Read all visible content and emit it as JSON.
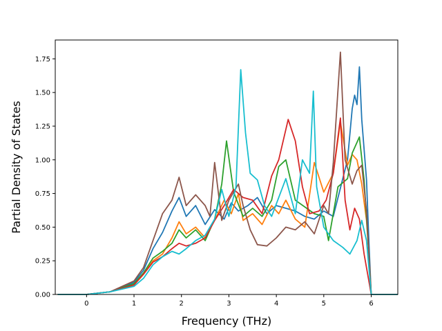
{
  "chart_data": {
    "type": "line",
    "title": "",
    "xlabel": "Frequency (THz)",
    "ylabel": "Partial Density of States",
    "xlim": [
      -0.66,
      6.56
    ],
    "ylim": [
      0,
      1.89
    ],
    "xticks": [
      0,
      1,
      2,
      3,
      4,
      5,
      6
    ],
    "xtick_labels": [
      "0",
      "1",
      "2",
      "3",
      "4",
      "5",
      "6"
    ],
    "yticks": [
      0,
      0.25,
      0.5,
      0.75,
      1.0,
      1.25,
      1.5,
      1.75
    ],
    "ytick_labels": [
      "0.00",
      "0.25",
      "0.50",
      "0.75",
      "1.00",
      "1.25",
      "1.50",
      "1.75"
    ],
    "grid": false,
    "legend": "none",
    "series": [
      {
        "color": "#1f77b4",
        "points": [
          [
            -0.6,
            0
          ],
          [
            0,
            0
          ],
          [
            0.5,
            0.02
          ],
          [
            1.0,
            0.09
          ],
          [
            1.2,
            0.18
          ],
          [
            1.4,
            0.34
          ],
          [
            1.6,
            0.46
          ],
          [
            1.8,
            0.62
          ],
          [
            1.95,
            0.72
          ],
          [
            2.1,
            0.58
          ],
          [
            2.3,
            0.66
          ],
          [
            2.5,
            0.52
          ],
          [
            2.7,
            0.63
          ],
          [
            2.9,
            0.56
          ],
          [
            3.05,
            0.68
          ],
          [
            3.2,
            0.62
          ],
          [
            3.4,
            0.66
          ],
          [
            3.6,
            0.72
          ],
          [
            3.8,
            0.6
          ],
          [
            4.0,
            0.66
          ],
          [
            4.2,
            0.64
          ],
          [
            4.4,
            0.62
          ],
          [
            4.6,
            0.58
          ],
          [
            4.8,
            0.56
          ],
          [
            5.0,
            0.62
          ],
          [
            5.2,
            0.58
          ],
          [
            5.4,
            0.86
          ],
          [
            5.5,
            1.0
          ],
          [
            5.6,
            1.38
          ],
          [
            5.65,
            1.48
          ],
          [
            5.7,
            1.41
          ],
          [
            5.75,
            1.69
          ],
          [
            5.8,
            1.3
          ],
          [
            5.9,
            0.85
          ],
          [
            5.95,
            0.4
          ],
          [
            6.0,
            0
          ],
          [
            6.55,
            0
          ]
        ]
      },
      {
        "color": "#ff7f0e",
        "points": [
          [
            -0.6,
            0
          ],
          [
            0,
            0
          ],
          [
            0.5,
            0.02
          ],
          [
            1.0,
            0.07
          ],
          [
            1.2,
            0.15
          ],
          [
            1.4,
            0.25
          ],
          [
            1.6,
            0.3
          ],
          [
            1.8,
            0.42
          ],
          [
            1.95,
            0.54
          ],
          [
            2.1,
            0.45
          ],
          [
            2.3,
            0.5
          ],
          [
            2.5,
            0.42
          ],
          [
            2.7,
            0.55
          ],
          [
            2.9,
            0.7
          ],
          [
            3.05,
            0.6
          ],
          [
            3.2,
            0.75
          ],
          [
            3.3,
            0.55
          ],
          [
            3.5,
            0.6
          ],
          [
            3.7,
            0.52
          ],
          [
            3.9,
            0.66
          ],
          [
            4.05,
            0.6
          ],
          [
            4.2,
            0.7
          ],
          [
            4.4,
            0.56
          ],
          [
            4.6,
            0.5
          ],
          [
            4.8,
            0.98
          ],
          [
            5.0,
            0.76
          ],
          [
            5.2,
            0.9
          ],
          [
            5.35,
            1.28
          ],
          [
            5.5,
            0.96
          ],
          [
            5.6,
            1.04
          ],
          [
            5.7,
            1.0
          ],
          [
            5.8,
            0.82
          ],
          [
            5.9,
            0.55
          ],
          [
            5.95,
            0.3
          ],
          [
            6.0,
            0
          ],
          [
            6.55,
            0
          ]
        ]
      },
      {
        "color": "#2ca02c",
        "points": [
          [
            -0.6,
            0
          ],
          [
            0,
            0
          ],
          [
            0.5,
            0.02
          ],
          [
            1.0,
            0.08
          ],
          [
            1.2,
            0.16
          ],
          [
            1.4,
            0.27
          ],
          [
            1.6,
            0.32
          ],
          [
            1.8,
            0.38
          ],
          [
            1.95,
            0.48
          ],
          [
            2.1,
            0.42
          ],
          [
            2.3,
            0.48
          ],
          [
            2.5,
            0.4
          ],
          [
            2.7,
            0.56
          ],
          [
            2.85,
            0.82
          ],
          [
            2.95,
            1.14
          ],
          [
            3.1,
            0.76
          ],
          [
            3.3,
            0.58
          ],
          [
            3.5,
            0.64
          ],
          [
            3.7,
            0.58
          ],
          [
            3.9,
            0.7
          ],
          [
            4.05,
            0.95
          ],
          [
            4.2,
            1.0
          ],
          [
            4.4,
            0.7
          ],
          [
            4.6,
            0.65
          ],
          [
            4.8,
            0.6
          ],
          [
            5.0,
            0.58
          ],
          [
            5.1,
            0.4
          ],
          [
            5.3,
            0.8
          ],
          [
            5.5,
            0.86
          ],
          [
            5.6,
            1.05
          ],
          [
            5.75,
            1.17
          ],
          [
            5.85,
            0.85
          ],
          [
            5.95,
            0.3
          ],
          [
            6.0,
            0
          ],
          [
            6.55,
            0
          ]
        ]
      },
      {
        "color": "#d62728",
        "points": [
          [
            -0.6,
            0
          ],
          [
            0,
            0
          ],
          [
            0.5,
            0.02
          ],
          [
            1.0,
            0.07
          ],
          [
            1.2,
            0.15
          ],
          [
            1.4,
            0.24
          ],
          [
            1.6,
            0.28
          ],
          [
            1.8,
            0.34
          ],
          [
            1.95,
            0.38
          ],
          [
            2.1,
            0.36
          ],
          [
            2.3,
            0.38
          ],
          [
            2.5,
            0.42
          ],
          [
            2.7,
            0.55
          ],
          [
            2.9,
            0.66
          ],
          [
            3.1,
            0.78
          ],
          [
            3.3,
            0.72
          ],
          [
            3.5,
            0.7
          ],
          [
            3.7,
            0.6
          ],
          [
            3.9,
            0.88
          ],
          [
            4.05,
            1.0
          ],
          [
            4.25,
            1.3
          ],
          [
            4.4,
            1.14
          ],
          [
            4.55,
            0.8
          ],
          [
            4.7,
            0.6
          ],
          [
            4.9,
            0.62
          ],
          [
            5.05,
            0.7
          ],
          [
            5.2,
            0.9
          ],
          [
            5.35,
            1.31
          ],
          [
            5.45,
            0.7
          ],
          [
            5.55,
            0.48
          ],
          [
            5.65,
            0.64
          ],
          [
            5.75,
            0.56
          ],
          [
            5.85,
            0.3
          ],
          [
            5.95,
            0.1
          ],
          [
            6.0,
            0
          ],
          [
            6.55,
            0
          ]
        ]
      },
      {
        "color": "#8c564b",
        "points": [
          [
            -0.6,
            0
          ],
          [
            0,
            0
          ],
          [
            0.5,
            0.02
          ],
          [
            1.0,
            0.1
          ],
          [
            1.2,
            0.2
          ],
          [
            1.4,
            0.4
          ],
          [
            1.6,
            0.6
          ],
          [
            1.8,
            0.7
          ],
          [
            1.95,
            0.87
          ],
          [
            2.1,
            0.66
          ],
          [
            2.3,
            0.74
          ],
          [
            2.5,
            0.66
          ],
          [
            2.6,
            0.58
          ],
          [
            2.7,
            0.98
          ],
          [
            2.85,
            0.55
          ],
          [
            3.0,
            0.7
          ],
          [
            3.2,
            0.82
          ],
          [
            3.3,
            0.66
          ],
          [
            3.45,
            0.48
          ],
          [
            3.6,
            0.37
          ],
          [
            3.8,
            0.36
          ],
          [
            4.0,
            0.42
          ],
          [
            4.2,
            0.5
          ],
          [
            4.4,
            0.48
          ],
          [
            4.6,
            0.54
          ],
          [
            4.8,
            0.45
          ],
          [
            5.0,
            0.66
          ],
          [
            5.1,
            0.6
          ],
          [
            5.2,
            0.98
          ],
          [
            5.35,
            1.8
          ],
          [
            5.45,
            1.0
          ],
          [
            5.6,
            0.82
          ],
          [
            5.7,
            0.92
          ],
          [
            5.8,
            0.96
          ],
          [
            5.9,
            0.62
          ],
          [
            5.95,
            0.3
          ],
          [
            6.0,
            0
          ],
          [
            6.55,
            0
          ]
        ]
      },
      {
        "color": "#17becf",
        "points": [
          [
            -0.6,
            0
          ],
          [
            0,
            0
          ],
          [
            0.5,
            0.02
          ],
          [
            1.0,
            0.06
          ],
          [
            1.2,
            0.12
          ],
          [
            1.4,
            0.22
          ],
          [
            1.6,
            0.28
          ],
          [
            1.8,
            0.32
          ],
          [
            1.95,
            0.3
          ],
          [
            2.1,
            0.34
          ],
          [
            2.3,
            0.4
          ],
          [
            2.5,
            0.44
          ],
          [
            2.7,
            0.56
          ],
          [
            2.85,
            0.78
          ],
          [
            3.0,
            0.58
          ],
          [
            3.15,
            0.8
          ],
          [
            3.25,
            1.67
          ],
          [
            3.35,
            1.2
          ],
          [
            3.45,
            0.9
          ],
          [
            3.6,
            0.85
          ],
          [
            3.75,
            0.66
          ],
          [
            3.9,
            0.58
          ],
          [
            4.05,
            0.72
          ],
          [
            4.2,
            0.86
          ],
          [
            4.4,
            0.6
          ],
          [
            4.55,
            1.0
          ],
          [
            4.7,
            0.9
          ],
          [
            4.78,
            1.51
          ],
          [
            4.85,
            0.8
          ],
          [
            5.0,
            0.5
          ],
          [
            5.2,
            0.4
          ],
          [
            5.4,
            0.35
          ],
          [
            5.55,
            0.3
          ],
          [
            5.7,
            0.4
          ],
          [
            5.8,
            0.55
          ],
          [
            5.9,
            0.4
          ],
          [
            5.95,
            0.2
          ],
          [
            6.0,
            0
          ],
          [
            6.55,
            0
          ]
        ]
      }
    ]
  }
}
